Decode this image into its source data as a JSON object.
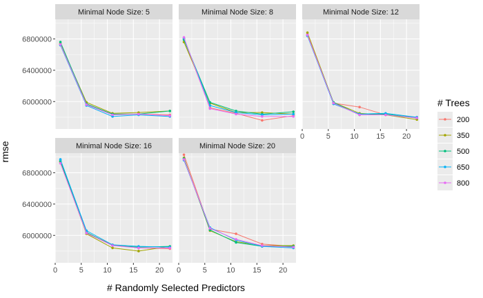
{
  "chart_data": {
    "type": "line",
    "xlabel": "# Randomly Selected Predictors",
    "ylabel": "rmse",
    "x": [
      1,
      6,
      11,
      16,
      22
    ],
    "xlim": [
      0,
      22.5
    ],
    "ylim": [
      5650000,
      7050000
    ],
    "x_ticks": [
      0,
      5,
      10,
      15,
      20
    ],
    "y_ticks": [
      6000000,
      6400000,
      6800000
    ],
    "grid": true,
    "legend": {
      "title": "# Trees",
      "position": "right",
      "entries": [
        {
          "label": "200",
          "color": "#F8766D"
        },
        {
          "label": "350",
          "color": "#A3A500"
        },
        {
          "label": "500",
          "color": "#00BF7D"
        },
        {
          "label": "650",
          "color": "#00B0F6"
        },
        {
          "label": "800",
          "color": "#E76BF3"
        }
      ]
    },
    "facets": [
      {
        "title": "Minimal Node Size: 5",
        "series": [
          {
            "name": "200",
            "values": [
              6730000,
              5970000,
              5840000,
              5840000,
              5830000
            ]
          },
          {
            "name": "350",
            "values": [
              6740000,
              5990000,
              5850000,
              5860000,
              5880000
            ]
          },
          {
            "name": "500",
            "values": [
              6760000,
              5970000,
              5840000,
              5840000,
              5880000
            ]
          },
          {
            "name": "650",
            "values": [
              6720000,
              5950000,
              5810000,
              5830000,
              5810000
            ]
          },
          {
            "name": "800",
            "values": [
              6730000,
              5960000,
              5830000,
              5840000,
              5820000
            ]
          }
        ]
      },
      {
        "title": "Minimal Node Size: 8",
        "series": [
          {
            "name": "200",
            "values": [
              6800000,
              5920000,
              5850000,
              5760000,
              5820000
            ]
          },
          {
            "name": "350",
            "values": [
              6760000,
              5980000,
              5860000,
              5860000,
              5840000
            ]
          },
          {
            "name": "500",
            "values": [
              6790000,
              5990000,
              5880000,
              5840000,
              5870000
            ]
          },
          {
            "name": "650",
            "values": [
              6810000,
              5950000,
              5860000,
              5830000,
              5840000
            ]
          },
          {
            "name": "800",
            "values": [
              6820000,
              5910000,
              5840000,
              5810000,
              5810000
            ]
          }
        ]
      },
      {
        "title": "Minimal Node Size: 12",
        "series": [
          {
            "name": "200",
            "values": [
              6860000,
              5980000,
              5930000,
              5830000,
              5800000
            ]
          },
          {
            "name": "350",
            "values": [
              6880000,
              5990000,
              5850000,
              5830000,
              5770000
            ]
          },
          {
            "name": "500",
            "values": [
              6840000,
              5990000,
              5830000,
              5840000,
              5790000
            ]
          },
          {
            "name": "650",
            "values": [
              6840000,
              5970000,
              5840000,
              5850000,
              5800000
            ]
          },
          {
            "name": "800",
            "values": [
              6850000,
              5980000,
              5830000,
              5830000,
              5790000
            ]
          }
        ]
      },
      {
        "title": "Minimal Node Size: 16",
        "series": [
          {
            "name": "200",
            "values": [
              6940000,
              6030000,
              5880000,
              5840000,
              5830000
            ]
          },
          {
            "name": "350",
            "values": [
              6940000,
              6020000,
              5840000,
              5800000,
              5860000
            ]
          },
          {
            "name": "500",
            "values": [
              6950000,
              6040000,
              5870000,
              5850000,
              5860000
            ]
          },
          {
            "name": "650",
            "values": [
              6970000,
              6060000,
              5880000,
              5860000,
              5850000
            ]
          },
          {
            "name": "800",
            "values": [
              6920000,
              6030000,
              5870000,
              5840000,
              5840000
            ]
          }
        ]
      },
      {
        "title": "Minimal Node Size: 20",
        "series": [
          {
            "name": "200",
            "values": [
              7030000,
              6080000,
              6020000,
              5890000,
              5860000
            ]
          },
          {
            "name": "350",
            "values": [
              6990000,
              6060000,
              5920000,
              5870000,
              5870000
            ]
          },
          {
            "name": "500",
            "values": [
              6980000,
              6070000,
              5910000,
              5860000,
              5860000
            ]
          },
          {
            "name": "650",
            "values": [
              6960000,
              6100000,
              5940000,
              5860000,
              5840000
            ]
          },
          {
            "name": "800",
            "values": [
              6970000,
              6090000,
              5950000,
              5870000,
              5850000
            ]
          }
        ]
      }
    ]
  }
}
